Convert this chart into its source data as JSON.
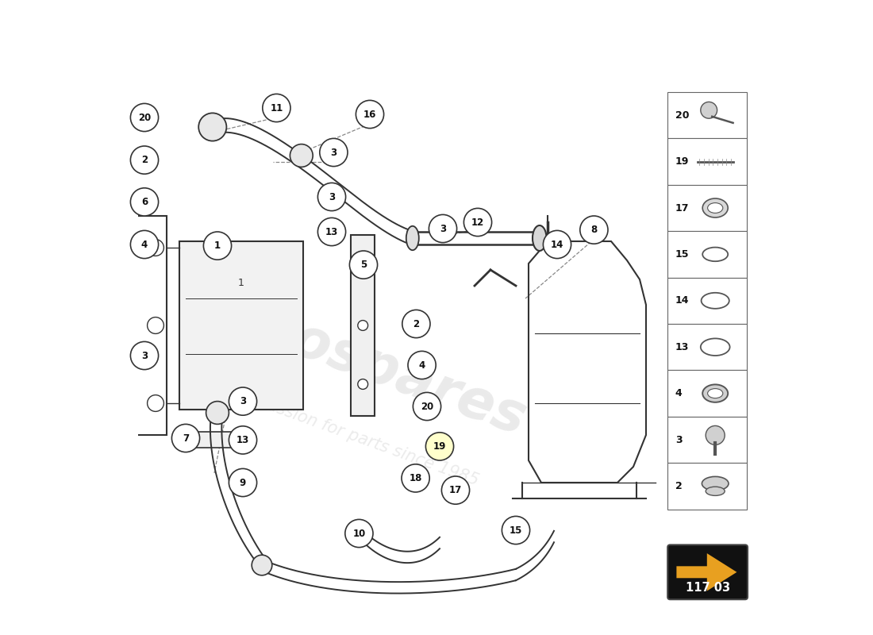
{
  "bg_color": "#ffffff",
  "watermark_text": "eurospares",
  "watermark_subtext": "a passion for parts since 1985",
  "part_number_box": "117 03",
  "sidebar_nums": [
    20,
    19,
    17,
    15,
    14,
    13,
    4,
    3,
    2
  ],
  "label_color": "#222222",
  "circle_color": "#ffffff",
  "circle_edge": "#333333",
  "arrow_color": "#e8a020",
  "line_color": "#333333",
  "dashed_color": "#888888"
}
